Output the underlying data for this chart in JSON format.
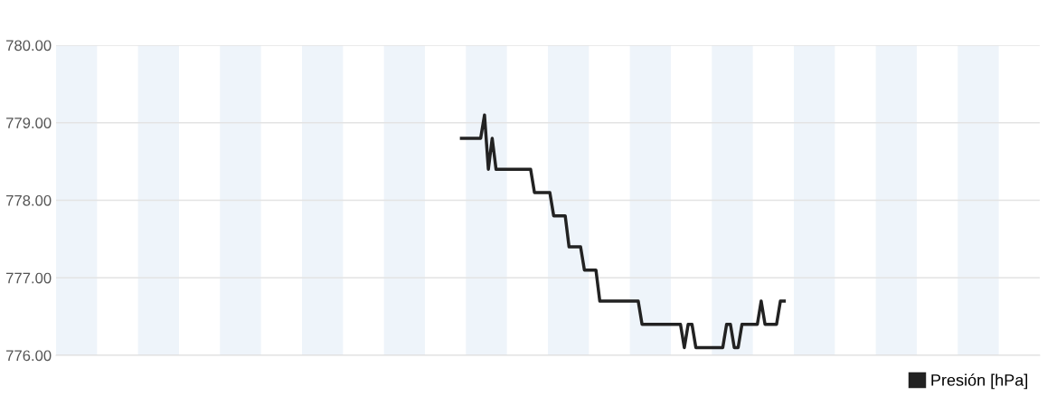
{
  "chart_data": {
    "type": "line",
    "tick_labels": "y",
    "grid": "y",
    "legend": "bottom right",
    "marker": "none",
    "line_style": "solid",
    "ylim": [
      776,
      780
    ],
    "yticks": [
      {
        "value": 776,
        "label": "776.00"
      },
      {
        "value": 777,
        "label": "777.00"
      },
      {
        "value": 778,
        "label": "778.00"
      },
      {
        "value": 779,
        "label": "779.00"
      },
      {
        "value": 780,
        "label": "780.00"
      }
    ],
    "categories": [
      null,
      null,
      null,
      null,
      null,
      null,
      null,
      null,
      null,
      null,
      null,
      null,
      null,
      null,
      null,
      null,
      null,
      null,
      null,
      null,
      null,
      null,
      null,
      null,
      null,
      null,
      null,
      null,
      null,
      null,
      null,
      null,
      null,
      null,
      null,
      null,
      null,
      null,
      null,
      null,
      null,
      null,
      null,
      null,
      null,
      null,
      null,
      null,
      null,
      null,
      null,
      null,
      null,
      null,
      null,
      null,
      null,
      null,
      null,
      null,
      null,
      null,
      null,
      null,
      null,
      null,
      null,
      null,
      null,
      null,
      null,
      null,
      null,
      null,
      null,
      null,
      null,
      null,
      null,
      null,
      null,
      null,
      null,
      null,
      null,
      null,
      null,
      null,
      null,
      null,
      null,
      null,
      null,
      null,
      null,
      null,
      null,
      null,
      null,
      null,
      null,
      null,
      null,
      null,
      null,
      null,
      null,
      null,
      null,
      null,
      null,
      null,
      null,
      null,
      null,
      null,
      null,
      null,
      null,
      null,
      null,
      null,
      null,
      null,
      null,
      null,
      null,
      null,
      null,
      null,
      null,
      null,
      null,
      null,
      null,
      null,
      null,
      null,
      null,
      null,
      null,
      null,
      null,
      null,
      null,
      null,
      null,
      null,
      null,
      null,
      null,
      null,
      null,
      null,
      null,
      null,
      null,
      null,
      null,
      null,
      null,
      null,
      null,
      null,
      null,
      null,
      null,
      null,
      null,
      null,
      null,
      null,
      null,
      null,
      null,
      null,
      null,
      null,
      null,
      null,
      null,
      null,
      null,
      null,
      null,
      null,
      null,
      null,
      null,
      null,
      null,
      null,
      null,
      null,
      null,
      null,
      null,
      null,
      null,
      null,
      null,
      null,
      null,
      null,
      null,
      null,
      null,
      null,
      null,
      null,
      null,
      null,
      null,
      null,
      null,
      null,
      null,
      null,
      null,
      null,
      null,
      null,
      null,
      null,
      null,
      null,
      null,
      null,
      null,
      null,
      null,
      null,
      null,
      null,
      null,
      null,
      null,
      null,
      null,
      null,
      null,
      null,
      null,
      null,
      null,
      null,
      null,
      null,
      null,
      null,
      null,
      null,
      null,
      null,
      null,
      null
    ],
    "series": [
      {
        "name": "Presión [hPa]",
        "color": "#222222",
        "values": [
          null,
          null,
          null,
          null,
          null,
          null,
          null,
          null,
          null,
          null,
          null,
          null,
          null,
          null,
          null,
          null,
          null,
          null,
          null,
          null,
          null,
          null,
          null,
          null,
          null,
          null,
          null,
          null,
          null,
          null,
          null,
          null,
          null,
          null,
          null,
          null,
          null,
          null,
          null,
          null,
          null,
          null,
          null,
          null,
          null,
          null,
          null,
          null,
          null,
          null,
          null,
          null,
          null,
          null,
          null,
          null,
          null,
          null,
          null,
          null,
          null,
          null,
          null,
          null,
          null,
          null,
          null,
          null,
          null,
          null,
          null,
          null,
          null,
          null,
          null,
          null,
          null,
          null,
          null,
          null,
          null,
          null,
          null,
          null,
          null,
          null,
          null,
          null,
          null,
          null,
          null,
          null,
          null,
          null,
          null,
          null,
          null,
          null,
          null,
          null,
          null,
          null,
          null,
          null,
          null,
          778.8,
          778.8,
          778.8,
          778.8,
          778.8,
          778.8,
          779.1,
          778.4,
          778.8,
          778.4,
          778.4,
          778.4,
          778.4,
          778.4,
          778.4,
          778.4,
          778.4,
          778.4,
          778.4,
          778.1,
          778.1,
          778.1,
          778.1,
          778.1,
          777.8,
          777.8,
          777.8,
          777.8,
          777.4,
          777.4,
          777.4,
          777.4,
          777.1,
          777.1,
          777.1,
          777.1,
          776.7,
          776.7,
          776.7,
          776.7,
          776.7,
          776.7,
          776.7,
          776.7,
          776.7,
          776.7,
          776.7,
          776.4,
          776.4,
          776.4,
          776.4,
          776.4,
          776.4,
          776.4,
          776.4,
          776.4,
          776.4,
          776.4,
          776.1,
          776.4,
          776.4,
          776.1,
          776.1,
          776.1,
          776.1,
          776.1,
          776.1,
          776.1,
          776.1,
          776.4,
          776.4,
          776.1,
          776.1,
          776.4,
          776.4,
          776.4,
          776.4,
          776.4,
          776.7,
          776.4,
          776.4,
          776.4,
          776.4,
          776.7,
          776.7,
          null,
          null,
          null,
          null,
          null,
          null,
          null,
          null,
          null,
          null,
          null,
          null,
          null,
          null,
          null,
          null,
          null,
          null,
          null,
          null,
          null,
          null,
          null,
          null,
          null,
          null,
          null,
          null,
          null,
          null,
          null,
          null,
          null,
          null,
          null,
          null,
          null,
          null,
          null,
          null,
          null,
          null,
          null,
          null,
          null,
          null,
          null,
          null,
          null,
          null,
          null,
          null,
          null,
          null,
          null,
          null,
          null,
          null,
          null,
          null,
          null,
          null,
          null,
          null,
          null,
          null
        ]
      }
    ]
  }
}
